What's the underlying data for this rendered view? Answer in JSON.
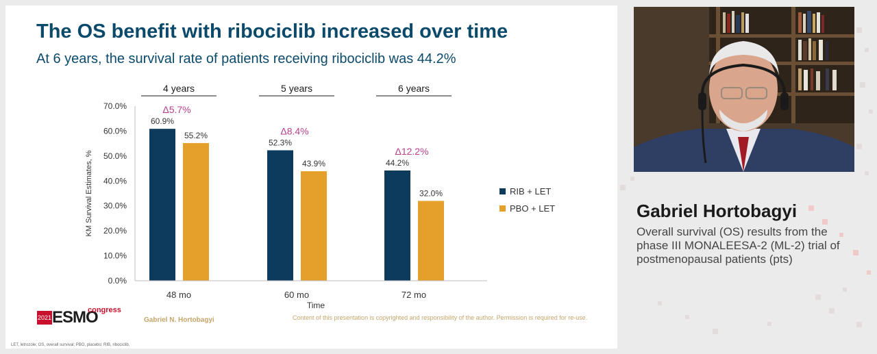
{
  "slide": {
    "title": "The OS benefit with ribociclib increased over time",
    "subtitle": "At 6 years, the survival rate of patients receiving ribociclib was 44.2%",
    "logo": {
      "year": "2021",
      "word": "ESMO",
      "suffix": "congress"
    },
    "presenter_footer": "Gabriel N. Hortobagyi",
    "copyright": "Content of this presentation is copyrighted and responsibility of the author. Permission is required for re-use.",
    "abbreviations": "LET, letrozole; OS, overall survival; PBO, placebo; RIB, ribociclib."
  },
  "speaker": {
    "name": "Gabriel Hortobagyi",
    "description": "Overall survival (OS) results from the phase III MONALEESA-2 (ML-2) trial of postmenopausal patients (pts)"
  },
  "colors": {
    "title": "#0b4a6b",
    "series_rib": "#0d3b5e",
    "series_pbo": "#e4a02b",
    "delta": "#b8408f",
    "footer_gold": "#c4a56a",
    "esmo_red": "#c8102e"
  },
  "chart_data": {
    "type": "bar",
    "categories": [
      "48 mo",
      "60 mo",
      "72 mo"
    ],
    "group_headers": [
      "4 years",
      "5 years",
      "6 years"
    ],
    "series": [
      {
        "name": "RIB + LET",
        "values": [
          60.9,
          52.3,
          44.2
        ],
        "labels": [
          "60.9%",
          "52.3%",
          "44.2%"
        ]
      },
      {
        "name": "PBO + LET",
        "values": [
          55.2,
          43.9,
          32.0
        ],
        "labels": [
          "55.2%",
          "43.9%",
          "32.0%"
        ]
      }
    ],
    "deltas": [
      "Δ5.7%",
      "Δ8.4%",
      "Δ12.2%"
    ],
    "xlabel": "Time",
    "ylabel": "KM Survival Estimates, %",
    "ylim": [
      0,
      70
    ],
    "yticks": [
      "0.0%",
      "10.0%",
      "20.0%",
      "30.0%",
      "40.0%",
      "50.0%",
      "60.0%",
      "70.0%"
    ],
    "grid": false,
    "legend": "right"
  }
}
